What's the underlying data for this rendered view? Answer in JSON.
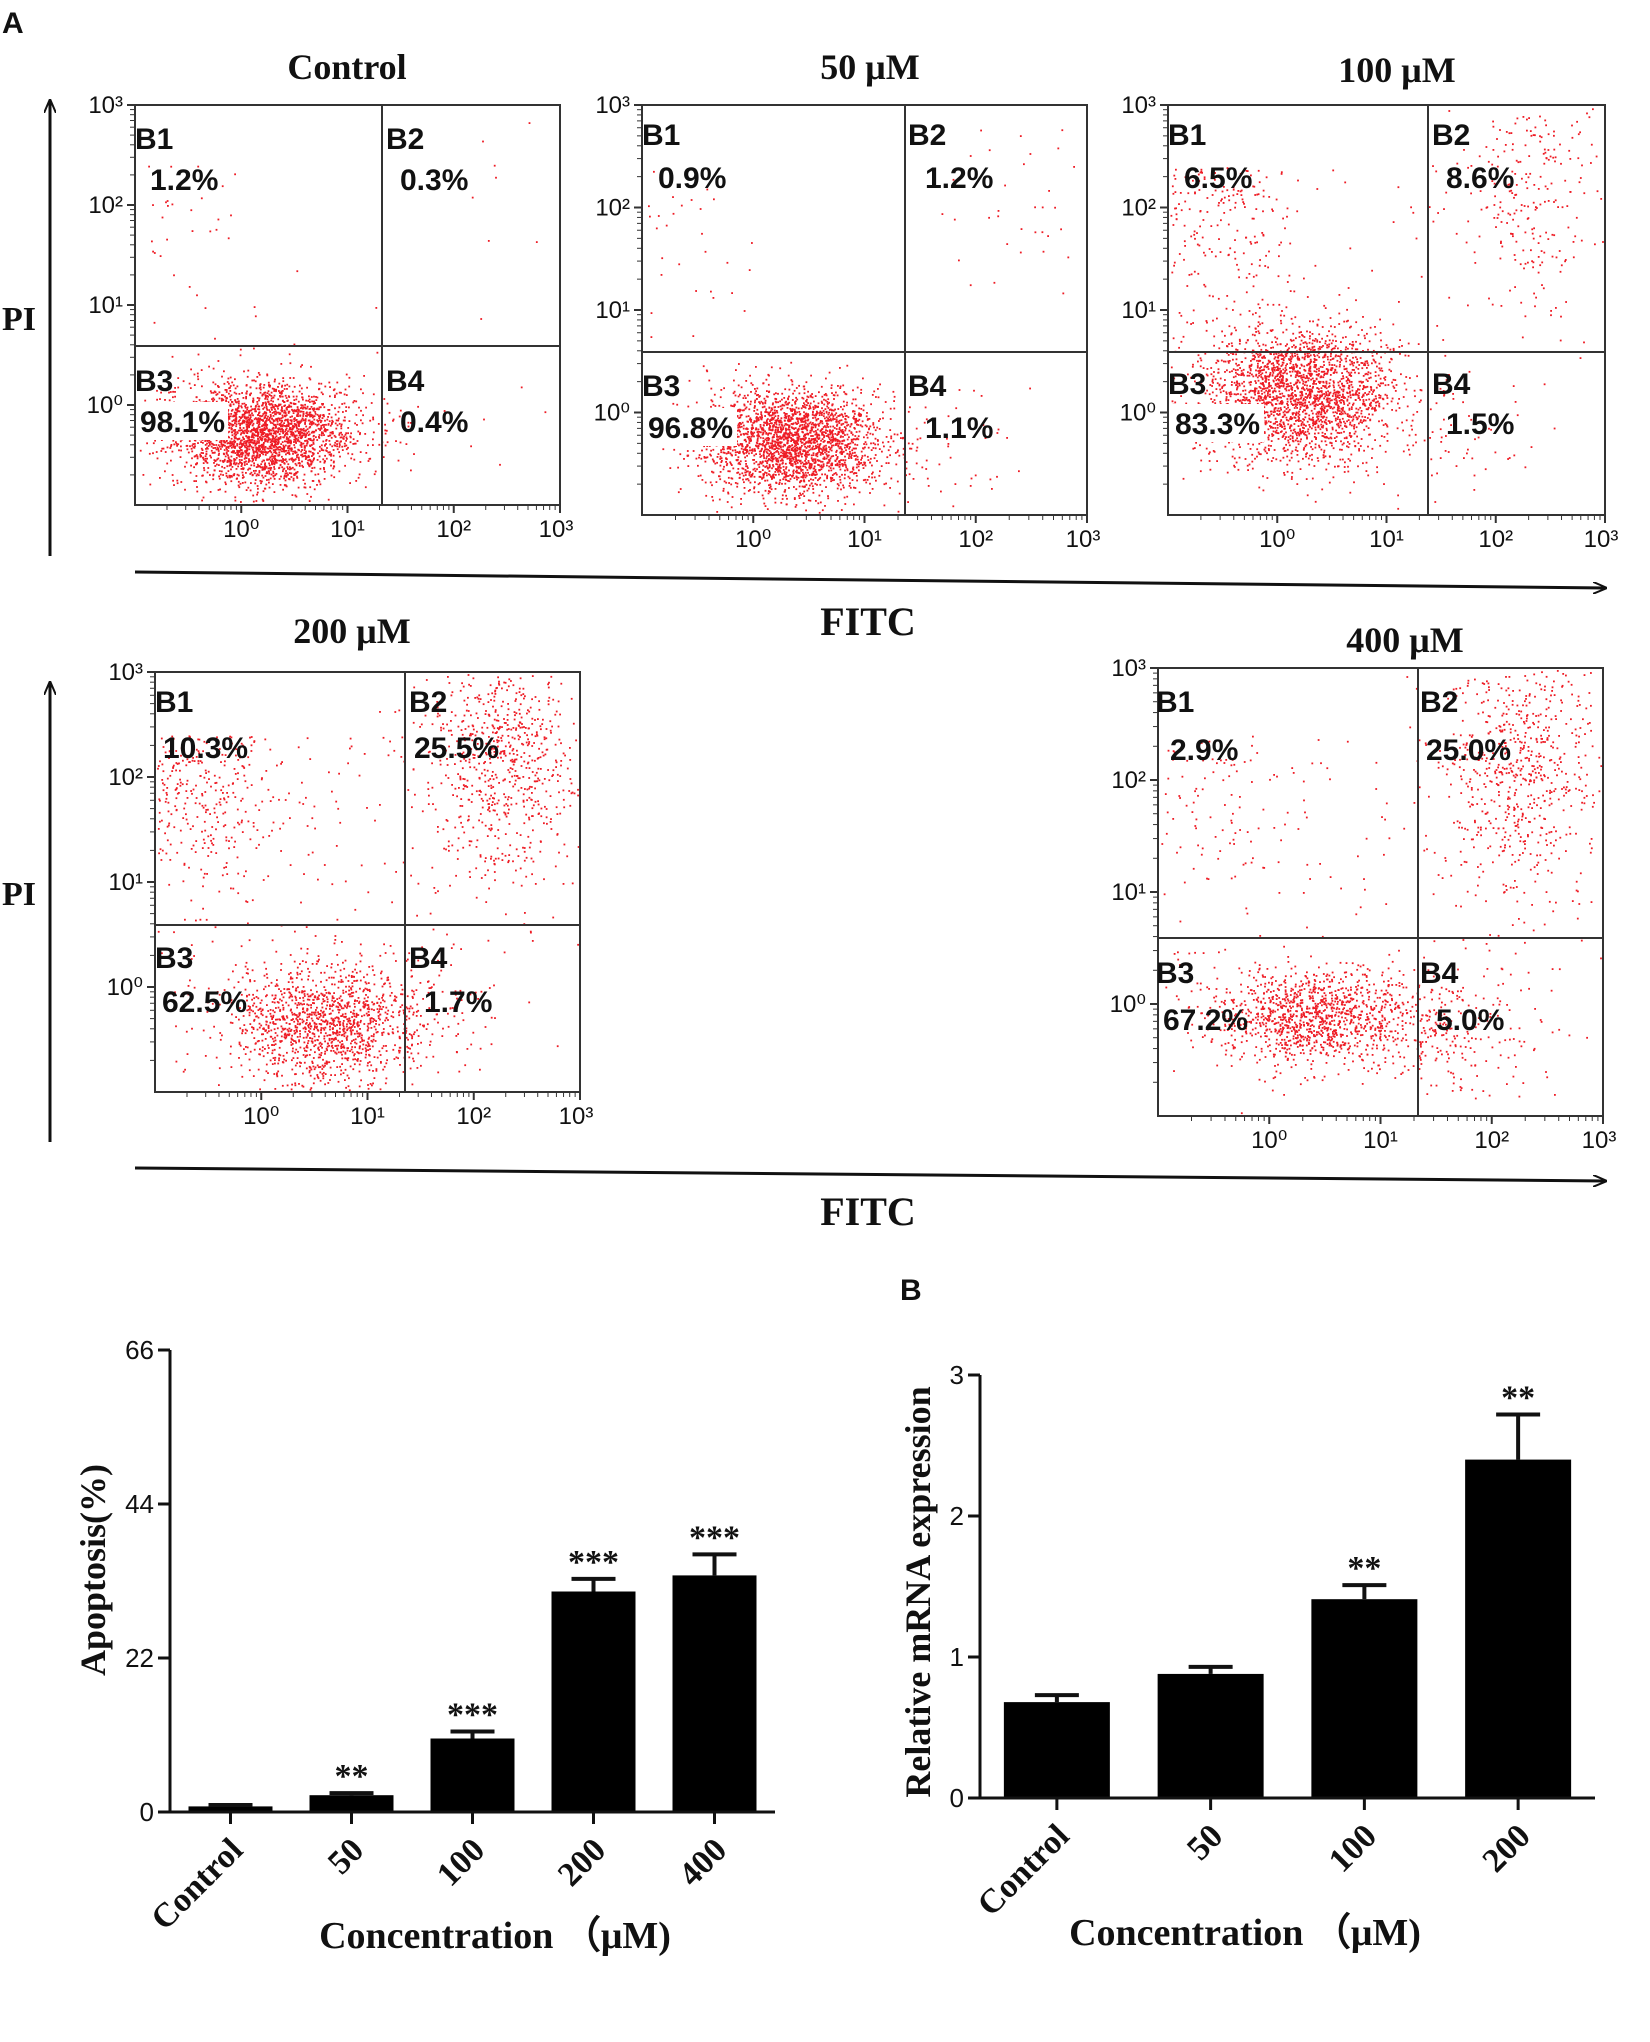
{
  "panel_labels": {
    "a": "A",
    "b": "B"
  },
  "flow_axes": {
    "x_label": "FITC",
    "y_label": "PI"
  },
  "flow_tick_labels": {
    "x": [
      "10⁰",
      "10¹",
      "10²",
      "10³"
    ],
    "y": [
      "10³",
      "10²",
      "10¹",
      "10⁰"
    ]
  },
  "colors": {
    "dots": "#ee1c25",
    "bars": "#000000",
    "axis": "#111111"
  },
  "chart_data": [
    {
      "type": "scatter",
      "id": "flow-control",
      "title": "Control",
      "axes": {
        "x": "FITC",
        "y": "PI",
        "scale": "log",
        "xlim": [
          0.1,
          1000
        ],
        "ylim": [
          0.1,
          1000
        ]
      },
      "quadrants": [
        {
          "name": "B1",
          "percent": "1.2%"
        },
        {
          "name": "B2",
          "percent": "0.3%"
        },
        {
          "name": "B3",
          "percent": "98.1%"
        },
        {
          "name": "B4",
          "percent": "0.4%"
        }
      ]
    },
    {
      "type": "scatter",
      "id": "flow-50",
      "title": "50 μM",
      "axes": {
        "x": "FITC",
        "y": "PI",
        "scale": "log",
        "xlim": [
          0.1,
          1000
        ],
        "ylim": [
          0.1,
          1000
        ]
      },
      "quadrants": [
        {
          "name": "B1",
          "percent": "0.9%"
        },
        {
          "name": "B2",
          "percent": "1.2%"
        },
        {
          "name": "B3",
          "percent": "96.8%"
        },
        {
          "name": "B4",
          "percent": "1.1%"
        }
      ]
    },
    {
      "type": "scatter",
      "id": "flow-100",
      "title": "100 μM",
      "axes": {
        "x": "FITC",
        "y": "PI",
        "scale": "log",
        "xlim": [
          0.1,
          1000
        ],
        "ylim": [
          0.1,
          1000
        ]
      },
      "quadrants": [
        {
          "name": "B1",
          "percent": "6.5%"
        },
        {
          "name": "B2",
          "percent": "8.6%"
        },
        {
          "name": "B3",
          "percent": "83.3%"
        },
        {
          "name": "B4",
          "percent": "1.5%"
        }
      ]
    },
    {
      "type": "scatter",
      "id": "flow-200",
      "title": "200 μM",
      "axes": {
        "x": "FITC",
        "y": "PI",
        "scale": "log",
        "xlim": [
          0.1,
          1000
        ],
        "ylim": [
          0.1,
          1000
        ]
      },
      "quadrants": [
        {
          "name": "B1",
          "percent": "10.3%"
        },
        {
          "name": "B2",
          "percent": "25.5%"
        },
        {
          "name": "B3",
          "percent": "62.5%"
        },
        {
          "name": "B4",
          "percent": "1.7%"
        }
      ]
    },
    {
      "type": "scatter",
      "id": "flow-400",
      "title": "400 μM",
      "axes": {
        "x": "FITC",
        "y": "PI",
        "scale": "log",
        "xlim": [
          0.1,
          1000
        ],
        "ylim": [
          0.1,
          1000
        ]
      },
      "quadrants": [
        {
          "name": "B1",
          "percent": "2.9%"
        },
        {
          "name": "B2",
          "percent": "25.0%"
        },
        {
          "name": "B3",
          "percent": "67.2%"
        },
        {
          "name": "B4",
          "percent": "5.0%"
        }
      ]
    },
    {
      "type": "bar",
      "id": "apoptosis-bar",
      "categories": [
        "Control",
        "50",
        "100",
        "200",
        "400"
      ],
      "values": [
        0.8,
        2.4,
        10.5,
        31.5,
        33.8
      ],
      "errors": [
        0.2,
        0.3,
        1.0,
        1.8,
        3.0
      ],
      "significance": [
        "",
        "**",
        "***",
        "***",
        "***"
      ],
      "ylabel": "Apoptosis(%)",
      "xlabel": "Concentration （μM)",
      "ylim": [
        0,
        66
      ],
      "yticks": [
        0,
        22,
        44,
        66
      ]
    },
    {
      "type": "bar",
      "id": "mrna-bar",
      "categories": [
        "Control",
        "50",
        "100",
        "200"
      ],
      "values": [
        0.68,
        0.88,
        1.41,
        2.4
      ],
      "errors": [
        0.05,
        0.05,
        0.1,
        0.32
      ],
      "significance": [
        "",
        "",
        "**",
        "**"
      ],
      "ylabel": "Relative mRNA expression",
      "xlabel": "Concentration （μM)",
      "ylim": [
        0,
        3
      ],
      "yticks": [
        0,
        1,
        2,
        3
      ]
    }
  ]
}
